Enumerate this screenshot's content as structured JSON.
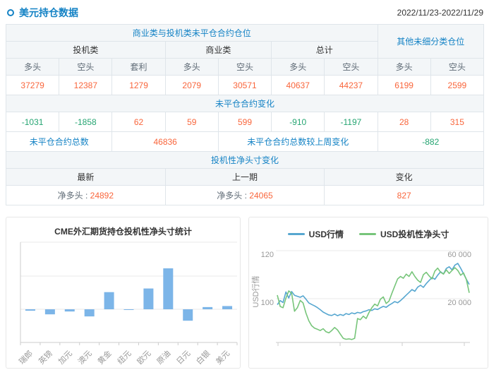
{
  "header": {
    "title": "美元持仓数据",
    "date_range": "2022/11/23-2022/11/29"
  },
  "table": {
    "group_header": "商业类与投机类未平仓合约仓位",
    "other_header": "其他未细分类仓位",
    "subgroups": [
      "投机类",
      "商业类",
      "总计"
    ],
    "col_headers": [
      "多头",
      "空头",
      "套利",
      "多头",
      "空头",
      "多头",
      "空头",
      "多头",
      "空头"
    ],
    "positions": [
      "37279",
      "12387",
      "1279",
      "2079",
      "30571",
      "40637",
      "44237",
      "6199",
      "2599"
    ],
    "change_header": "未平仓合约变化",
    "changes": [
      "-1031",
      "-1858",
      "62",
      "59",
      "599",
      "-910",
      "-1197",
      "28",
      "315"
    ],
    "total_label": "未平仓合约总数",
    "total_value": "46836",
    "total_change_label": "未平仓合约总数较上周变化",
    "total_change_value": "-882",
    "net_header": "投机性净头寸变化",
    "net_cols": [
      "最新",
      "上一期",
      "变化"
    ],
    "net_latest_label": "净多头 :",
    "net_latest_value": "24892",
    "net_prev_label": "净多头 :",
    "net_prev_value": "24065",
    "net_change_value": "827"
  },
  "colors": {
    "accent_blue": "#1583c5",
    "positive_orange": "#f9663c",
    "negative_green": "#25a572",
    "bar_blue": "#7cb5e8",
    "line_blue": "#57a7d0",
    "line_green": "#77c57a",
    "grid_gray": "#e8e8e8",
    "axis_gray": "#cccccc",
    "tick_label_gray": "#999999"
  },
  "chart_data": [
    {
      "type": "bar",
      "title": "CME外汇期货持仓投机性净头寸统计",
      "categories": [
        "瑞郎",
        "英镑",
        "加元",
        "澳元",
        "黄金",
        "纽元",
        "欧元",
        "原油",
        "日元",
        "白银",
        "美元"
      ],
      "values": [
        -11000,
        -39000,
        -17000,
        -55000,
        132000,
        -5000,
        160000,
        315000,
        -88000,
        17000,
        24892
      ],
      "xlabel": "",
      "ylabel": "",
      "y_axis_tick_labels": [],
      "ylim": [
        -250000,
        500000
      ],
      "gridline_interval": 250000,
      "grid": true,
      "legend_position": "none"
    },
    {
      "type": "line",
      "title": "",
      "legend": [
        "USD行情",
        "USD投机性净头寸"
      ],
      "legend_position": "top",
      "ylabel_left": "USD行情",
      "left_axis_ticks": [
        "120",
        "100"
      ],
      "left_axis_tick_values": [
        120,
        100
      ],
      "left_ylim": [
        81,
        124
      ],
      "right_axis_ticks": [
        "60 000",
        "20 000"
      ],
      "right_axis_tick_values": [
        60000,
        20000
      ],
      "right_ylim": [
        -18000,
        68000
      ],
      "x_axis_tick_labels": [],
      "grid": true,
      "series": [
        {
          "name": "USD行情",
          "axis": "left",
          "color": "#57a7d0",
          "values": [
            97.5,
            99.2,
            98.4,
            102.8,
            100.3,
            103.0,
            101.4,
            101.0,
            100.6,
            101.2,
            99.8,
            98.2,
            97.6,
            97.0,
            96.3,
            95.4,
            94.4,
            93.8,
            93.2,
            93.0,
            93.6,
            92.9,
            93.4,
            93.0,
            93.8,
            93.4,
            94.1,
            93.7,
            94.3,
            94.0,
            94.6,
            94.9,
            95.4,
            95.1,
            95.8,
            95.5,
            96.2,
            96.8,
            96.4,
            97.3,
            98.0,
            98.8,
            98.3,
            99.2,
            100.3,
            101.5,
            102.6,
            103.8,
            103.1,
            104.8,
            105.6,
            104.7,
            106.3,
            107.6,
            108.8,
            108.1,
            109.8,
            111.2,
            110.3,
            112.6,
            113.3,
            112.0,
            114.0,
            114.7,
            112.7,
            110.4,
            108.1,
            105.9
          ]
        },
        {
          "name": "USD投机性净头寸",
          "axis": "right",
          "color": "#77c57a",
          "values": [
            23000,
            13500,
            12500,
            20500,
            26500,
            24500,
            9500,
            12500,
            18500,
            16500,
            8000,
            1500,
            -2500,
            -4500,
            -5500,
            -6500,
            -5000,
            -7500,
            -8500,
            -6500,
            -4000,
            -6000,
            -9500,
            -13000,
            -13800,
            -13500,
            -14000,
            -13000,
            3500,
            2500,
            5500,
            3500,
            8500,
            12500,
            15500,
            14000,
            19500,
            21500,
            16000,
            18000,
            24500,
            30500,
            36500,
            38500,
            37000,
            40500,
            38500,
            42500,
            38500,
            35500,
            33500,
            40000,
            42000,
            39000,
            36500,
            43000,
            45500,
            42000,
            40500,
            44000,
            41000,
            43500,
            45800,
            43500,
            39500,
            41500,
            36000,
            24892
          ]
        }
      ]
    }
  ]
}
